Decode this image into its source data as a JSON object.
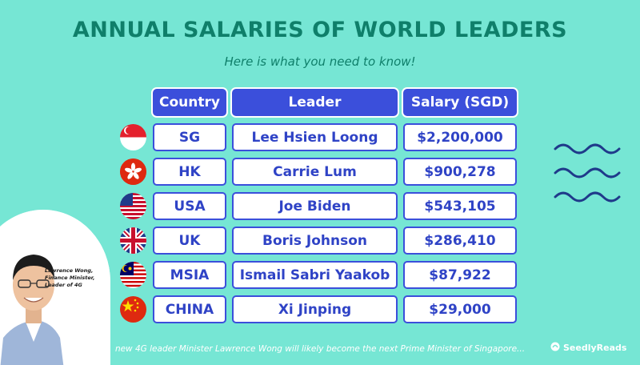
{
  "header": {
    "title": "ANNUAL SALARIES OF WORLD LEADERS",
    "subtitle": "Here is what you need to know!"
  },
  "table": {
    "columns": [
      "Country",
      "Leader",
      "Salary (SGD)"
    ],
    "rows": [
      {
        "country": "SG",
        "leader": "Lee Hsien Loong",
        "salary": "$2,200,000",
        "flag_icon": "singapore-flag-icon"
      },
      {
        "country": "HK",
        "leader": "Carrie Lum",
        "salary": "$900,278",
        "flag_icon": "hong-kong-flag-icon"
      },
      {
        "country": "USA",
        "leader": "Joe Biden",
        "salary": "$543,105",
        "flag_icon": "usa-flag-icon"
      },
      {
        "country": "UK",
        "leader": "Boris Johnson",
        "salary": "$286,410",
        "flag_icon": "uk-flag-icon"
      },
      {
        "country": "MSIA",
        "leader": "Ismail Sabri Yaakob",
        "salary": "$87,922",
        "flag_icon": "malaysia-flag-icon"
      },
      {
        "country": "CHINA",
        "leader": "Xi Jinping",
        "salary": "$29,000",
        "flag_icon": "china-flag-icon"
      }
    ]
  },
  "photo": {
    "caption": "Lawrence Wong, Finance Minister, Leader of 4G"
  },
  "footer": {
    "note": "new 4G leader Minister Lawrence Wong will likely become the next Prime Minister of Singapore...",
    "brand": "SeedlyReads"
  },
  "colors": {
    "background": "#76e6d4",
    "title": "#0f7f6a",
    "header_cell": "#3b4fdb",
    "cell_text": "#2f43c6"
  }
}
